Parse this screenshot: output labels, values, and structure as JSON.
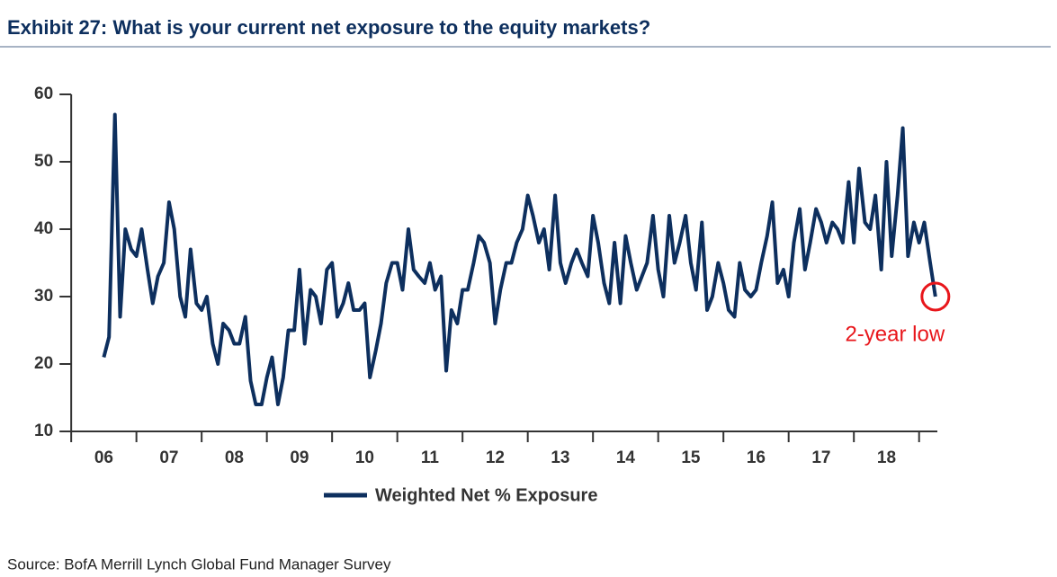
{
  "chart_data": {
    "type": "line",
    "title": "Exhibit 27: What is your current net exposure to the equity markets?",
    "source": "Source: BofA Merrill Lynch Global Fund Manager Survey",
    "annotation": {
      "text": "2-year low",
      "color": "#e8161b"
    },
    "xlim": [
      2005.86,
      2019.28
    ],
    "xticks": [
      2006,
      2007,
      2008,
      2009,
      2010,
      2011,
      2012,
      2013,
      2014,
      2015,
      2016,
      2017,
      2018,
      2019
    ],
    "xtick_labels": [
      {
        "value": 2006.5,
        "label": "06"
      },
      {
        "value": 2007.5,
        "label": "07"
      },
      {
        "value": 2008.5,
        "label": "08"
      },
      {
        "value": 2009.5,
        "label": "09"
      },
      {
        "value": 2010.5,
        "label": "10"
      },
      {
        "value": 2011.5,
        "label": "11"
      },
      {
        "value": 2012.5,
        "label": "12"
      },
      {
        "value": 2013.5,
        "label": "13"
      },
      {
        "value": 2014.5,
        "label": "14"
      },
      {
        "value": 2015.5,
        "label": "15"
      },
      {
        "value": 2016.5,
        "label": "16"
      },
      {
        "value": 2017.5,
        "label": "17"
      },
      {
        "value": 2018.5,
        "label": "18"
      }
    ],
    "ylim": [
      10,
      60
    ],
    "yticks": [
      10,
      20,
      30,
      40,
      50,
      60
    ],
    "grid": false,
    "legend": "bottom",
    "x": [
      2006.5,
      2006.58,
      2006.67,
      2006.75,
      2006.83,
      2006.92,
      2007,
      2007.08,
      2007.17,
      2007.25,
      2007.33,
      2007.42,
      2007.5,
      2007.58,
      2007.67,
      2007.75,
      2007.83,
      2007.92,
      2008,
      2008.08,
      2008.17,
      2008.25,
      2008.33,
      2008.42,
      2008.5,
      2008.58,
      2008.67,
      2008.75,
      2008.83,
      2008.92,
      2009,
      2009.08,
      2009.17,
      2009.25,
      2009.33,
      2009.42,
      2009.5,
      2009.58,
      2009.67,
      2009.75,
      2009.83,
      2009.92,
      2010,
      2010.08,
      2010.17,
      2010.25,
      2010.33,
      2010.42,
      2010.5,
      2010.58,
      2010.67,
      2010.75,
      2010.83,
      2010.92,
      2011,
      2011.08,
      2011.17,
      2011.25,
      2011.33,
      2011.42,
      2011.5,
      2011.58,
      2011.67,
      2011.75,
      2011.83,
      2011.92,
      2012,
      2012.08,
      2012.17,
      2012.25,
      2012.33,
      2012.42,
      2012.5,
      2012.58,
      2012.67,
      2012.75,
      2012.83,
      2012.92,
      2013,
      2013.08,
      2013.17,
      2013.25,
      2013.33,
      2013.42,
      2013.5,
      2013.58,
      2013.67,
      2013.75,
      2013.83,
      2013.92,
      2014,
      2014.08,
      2014.17,
      2014.25,
      2014.33,
      2014.42,
      2014.5,
      2014.58,
      2014.67,
      2014.75,
      2014.83,
      2014.92,
      2015,
      2015.08,
      2015.17,
      2015.25,
      2015.33,
      2015.42,
      2015.5,
      2015.58,
      2015.67,
      2015.75,
      2015.83,
      2015.92,
      2016,
      2016.08,
      2016.17,
      2016.25,
      2016.33,
      2016.42,
      2016.5,
      2016.58,
      2016.67,
      2016.75,
      2016.83,
      2016.92,
      2017,
      2017.08,
      2017.17,
      2017.25,
      2017.33,
      2017.42,
      2017.5,
      2017.58,
      2017.67,
      2017.75,
      2017.83,
      2017.92,
      2018,
      2018.08,
      2018.17,
      2018.25,
      2018.33,
      2018.42,
      2018.5,
      2018.58,
      2018.67,
      2018.75,
      2018.83,
      2018.92,
      2019,
      2019.08,
      2019.17,
      2019.25
    ],
    "series": [
      {
        "name": "Weighted Net % Exposure",
        "color": "#0d2f5e",
        "values": [
          21,
          24,
          57,
          27,
          40,
          37,
          36,
          40,
          34,
          29,
          33,
          35,
          44,
          40,
          30,
          27,
          37,
          29,
          28,
          30,
          23,
          20,
          26,
          25,
          23,
          23,
          27,
          17.5,
          14,
          14,
          18,
          21,
          14,
          18,
          25,
          25,
          34,
          23,
          31,
          30,
          26,
          34,
          35,
          27,
          29,
          32,
          28,
          28,
          29,
          18,
          22,
          26,
          32,
          35,
          35,
          31,
          40,
          34,
          33,
          32,
          35,
          31,
          33,
          19,
          28,
          26,
          31,
          31,
          35,
          39,
          38,
          35,
          26,
          31,
          35,
          35,
          38,
          40,
          45,
          42,
          38,
          40,
          34,
          45,
          35,
          32,
          35,
          37,
          35,
          33,
          42,
          38,
          32,
          29,
          38,
          29,
          39,
          35,
          31,
          33,
          35,
          42,
          34,
          30,
          42,
          35,
          38,
          42,
          35,
          31,
          41,
          28,
          30,
          35,
          32,
          28,
          27,
          35,
          31,
          30,
          31,
          35,
          39,
          44,
          32,
          34,
          30,
          38,
          43,
          34,
          38,
          43,
          41,
          38,
          41,
          40,
          38,
          47,
          38,
          49,
          41,
          40,
          45,
          34,
          50,
          36,
          45,
          55,
          36,
          41,
          38,
          41,
          35,
          30
        ]
      }
    ]
  }
}
